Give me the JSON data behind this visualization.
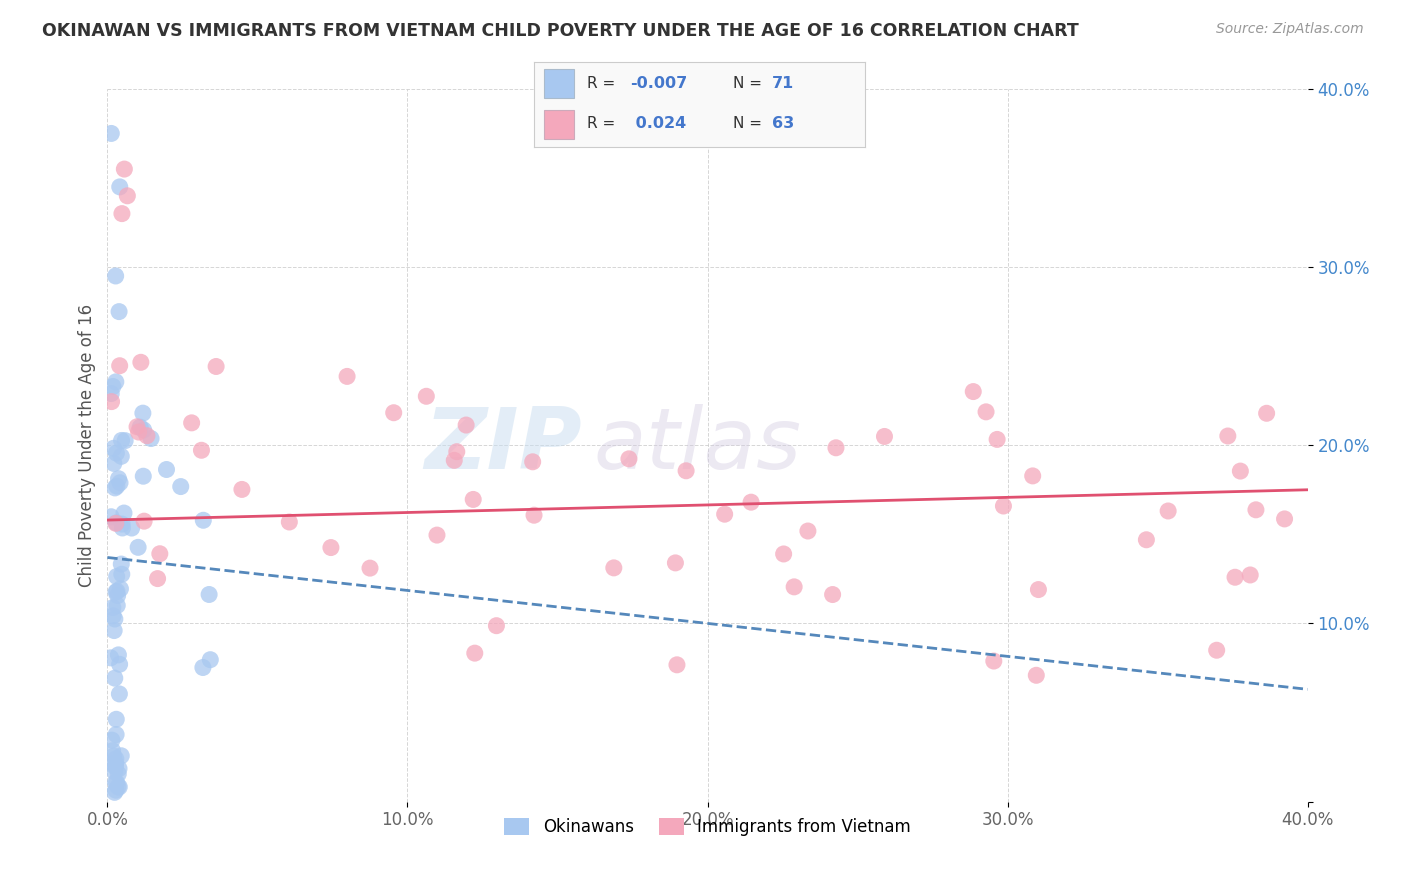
{
  "title": "OKINAWAN VS IMMIGRANTS FROM VIETNAM CHILD POVERTY UNDER THE AGE OF 16 CORRELATION CHART",
  "source": "Source: ZipAtlas.com",
  "ylabel": "Child Poverty Under the Age of 16",
  "xlim": [
    0,
    0.4
  ],
  "ylim": [
    0,
    0.4
  ],
  "okinawan_color": "#a8c8f0",
  "vietnam_color": "#f4a8bc",
  "line1_color": "#5588bb",
  "line2_color": "#e05070",
  "watermark_zip": "ZIP",
  "watermark_atlas": "atlas",
  "background_color": "#ffffff"
}
